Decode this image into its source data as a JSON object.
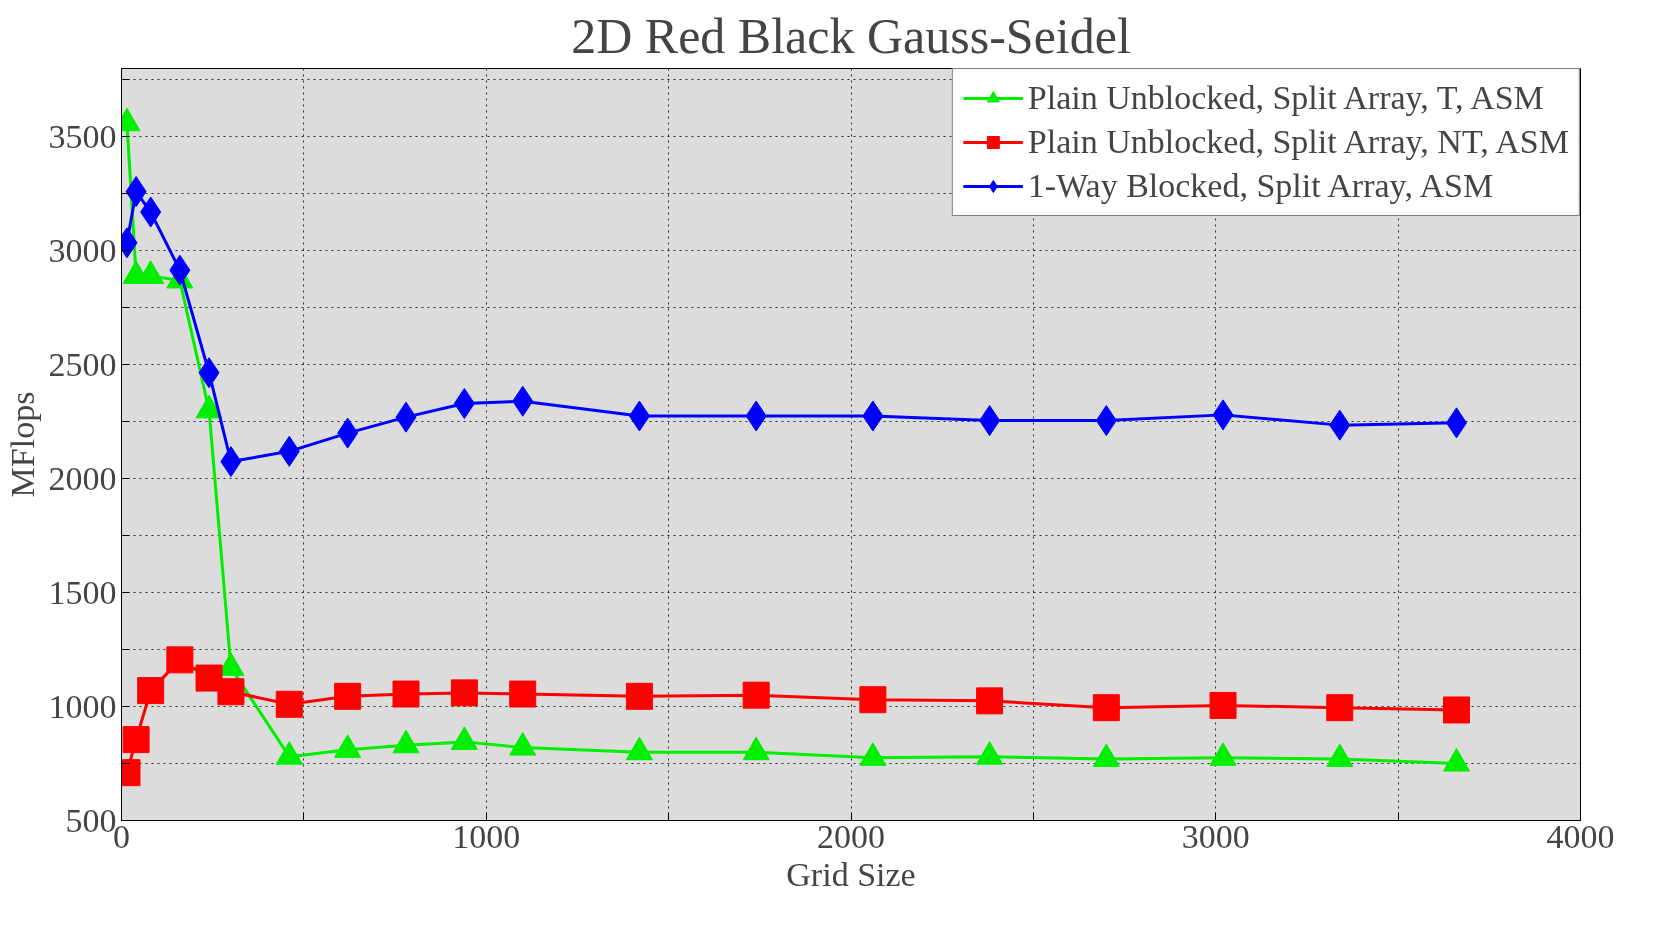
{
  "chart_data": {
    "type": "line",
    "title": "2D Red Black Gauss-Seidel",
    "xlabel": "Grid Size",
    "ylabel": "MFlops",
    "x": [
      15,
      40,
      80,
      160,
      240,
      300,
      460,
      620,
      780,
      940,
      1100,
      1420,
      1740,
      2060,
      2380,
      2700,
      3020,
      3340,
      3660
    ],
    "series": [
      {
        "name": "Plain Unblocked, Split Array, T, ASM",
        "color": "#00ee00",
        "marker": "triangle",
        "values": [
          3560,
          2890,
          2890,
          2870,
          2300,
          1170,
          780,
          810,
          830,
          845,
          820,
          800,
          800,
          775,
          780,
          770,
          775,
          770,
          750
        ]
      },
      {
        "name": "Plain Unblocked, Split Array, NT, ASM",
        "color": "#ff0000",
        "marker": "square",
        "values": [
          710,
          855,
          1070,
          1205,
          1125,
          1065,
          1010,
          1045,
          1055,
          1060,
          1055,
          1045,
          1050,
          1030,
          1025,
          995,
          1005,
          995,
          985
        ]
      },
      {
        "name": "1-Way Blocked, Split Array, ASM",
        "color": "#0000ff",
        "marker": "diamond",
        "values": [
          3035,
          3260,
          3170,
          2915,
          2465,
          2075,
          2120,
          2200,
          2270,
          2330,
          2340,
          2275,
          2275,
          2275,
          2255,
          2255,
          2280,
          2235,
          2245
        ]
      }
    ],
    "xlim": [
      0,
      4000
    ],
    "ylim": [
      500,
      3800
    ],
    "xticks": [
      0,
      {
        "value": 500,
        "label": null
      },
      1000,
      {
        "value": 1500,
        "label": null
      },
      2000,
      {
        "value": 2500,
        "label": null
      },
      3000,
      {
        "value": 3500,
        "label": null
      },
      4000
    ],
    "yticks": [
      500,
      {
        "value": 750,
        "label": null
      },
      1000,
      {
        "value": 1250,
        "label": null
      },
      1500,
      {
        "value": 1750,
        "label": null
      },
      2000,
      {
        "value": 2250,
        "label": null
      },
      2500,
      {
        "value": 2750,
        "label": null
      },
      3000,
      {
        "value": 3250,
        "label": null
      },
      3500,
      {
        "value": 3750,
        "label": null
      }
    ],
    "grid": true,
    "legend": "top right",
    "line_style": "solid"
  }
}
